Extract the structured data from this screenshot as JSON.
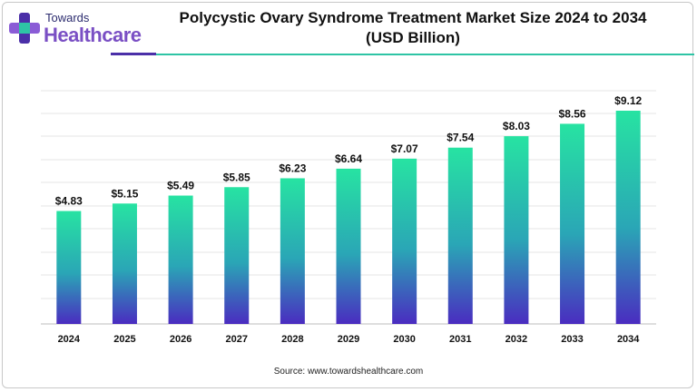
{
  "brand": {
    "top": "Towards",
    "main": "Healthcare"
  },
  "chart_data": {
    "type": "bar",
    "title": "Polycystic Ovary Syndrome Treatment Market Size 2024 to 2034",
    "subtitle": "(USD Billion)",
    "categories": [
      "2024",
      "2025",
      "2026",
      "2027",
      "2028",
      "2029",
      "2030",
      "2031",
      "2032",
      "2033",
      "2034"
    ],
    "values": [
      4.83,
      5.15,
      5.49,
      5.85,
      6.23,
      6.64,
      7.07,
      7.54,
      8.03,
      8.56,
      9.12
    ],
    "value_labels": [
      "$4.83",
      "$5.15",
      "$5.49",
      "$5.85",
      "$6.23",
      "$6.64",
      "$7.07",
      "$7.54",
      "$8.03",
      "$8.56",
      "$9.12"
    ],
    "xlabel": "",
    "ylabel": "",
    "ylim": [
      0,
      9.12
    ],
    "grid": true,
    "legend": "none",
    "colors": {
      "bar_top": "#27e3a2",
      "bar_mid": "#2aa6b6",
      "bar_bottom": "#4a2cc0",
      "grid": "#e6e6e6"
    }
  },
  "source": "Source: www.towardshealthcare.com"
}
